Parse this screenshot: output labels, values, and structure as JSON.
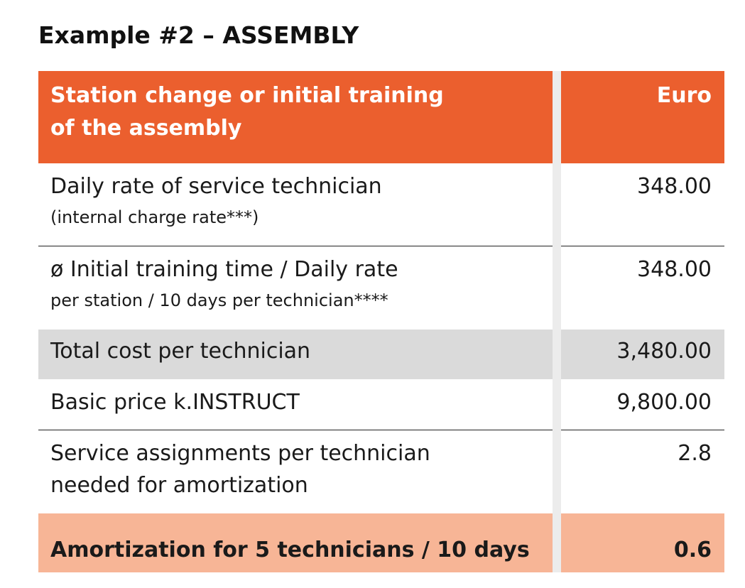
{
  "title": "Example #2 – ASSEMBLY",
  "table": {
    "header": {
      "label_line1": "Station change or initial training",
      "label_line2": "of the assembly",
      "value": "Euro"
    },
    "rows": [
      {
        "label": "Daily rate of service technician",
        "sublabel": "(internal charge rate***)",
        "value": "348.00"
      },
      {
        "label": "ø Initial training time / Daily rate",
        "sublabel": "per station / 10 days per technician****",
        "value": "348.00"
      },
      {
        "label": "Total cost per technician",
        "value": "3,480.00"
      },
      {
        "label": "Basic price k.INSTRUCT",
        "value": "9,800.00"
      },
      {
        "label_line1": "Service assignments per technician",
        "label_line2": "needed for amortization",
        "value": "2.8"
      },
      {
        "label": "Amortization for 5 technicians / 10 days",
        "value": "0.6"
      }
    ]
  },
  "colors": {
    "header_bg": "#eb5f2e",
    "total_row_bg": "#dadada",
    "amortization_row_bg": "#f7b596",
    "column_gap": "#ececec"
  }
}
